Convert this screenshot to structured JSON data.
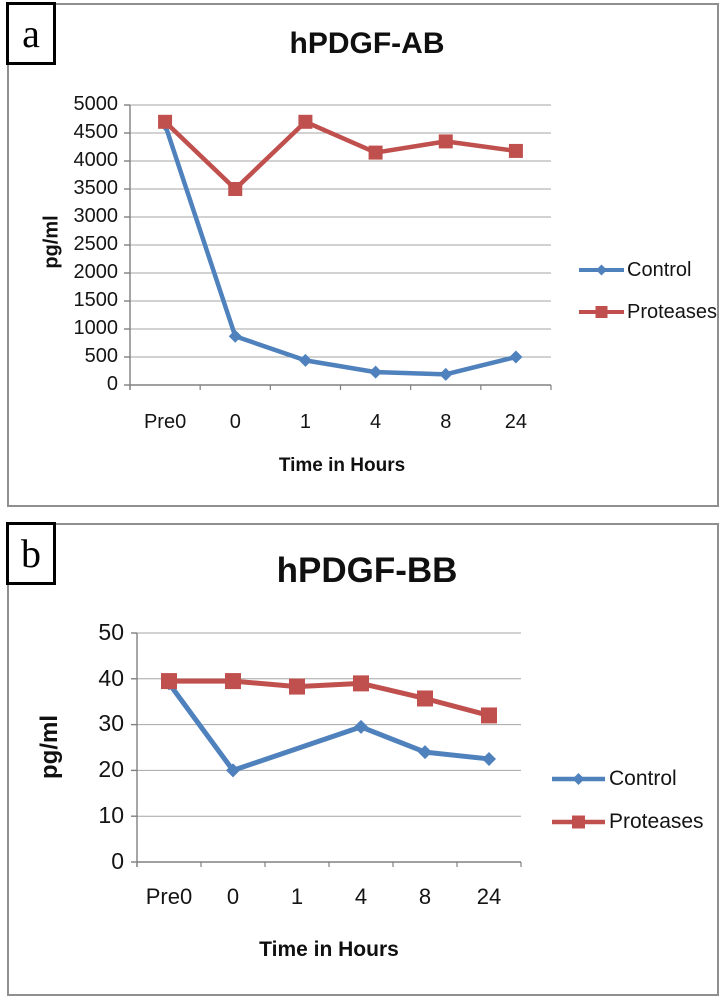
{
  "figure": {
    "background_color": "#ffffff",
    "panel_border_color": "#8f8f8f",
    "text_color": "#141414",
    "gridline_color": "#a6a6a6",
    "axis_color": "#808080",
    "accent_blue": "#4F81BD",
    "accent_red": "#C0504D"
  },
  "chart_data": [
    {
      "type": "line",
      "panel_label": "a",
      "title": "hPDGF-AB",
      "xlabel": "Time in Hours",
      "ylabel": "pg/ml",
      "categories": [
        "Pre0",
        "0",
        "1",
        "4",
        "8",
        "24"
      ],
      "series": [
        {
          "name": "Control",
          "color": "#4F81BD",
          "marker": "diamond",
          "values": [
            4650,
            870,
            440,
            230,
            190,
            500
          ]
        },
        {
          "name": "Proteases",
          "color": "#C0504D",
          "marker": "square",
          "values": [
            4700,
            3500,
            4700,
            4150,
            4350,
            4180
          ]
        }
      ],
      "ylim": [
        0,
        5000
      ],
      "ytick_step": 500,
      "grid": true,
      "legend_position": "right",
      "legend_labels": [
        "Control",
        "Proteases"
      ]
    },
    {
      "type": "line",
      "panel_label": "b",
      "title": "hPDGF-BB",
      "xlabel": "Time in Hours",
      "ylabel": "pg/ml",
      "categories": [
        "Pre0",
        "0",
        "1",
        "4",
        "8",
        "24"
      ],
      "series": [
        {
          "name": "Control",
          "color": "#4F81BD",
          "marker": "diamond",
          "values": [
            39,
            20,
            null,
            29.5,
            24,
            22.5
          ]
        },
        {
          "name": "Proteases",
          "color": "#C0504D",
          "marker": "square",
          "values": [
            39.5,
            39.5,
            38.3,
            39,
            35.7,
            32
          ]
        }
      ],
      "ylim": [
        0,
        50
      ],
      "ytick_step": 10,
      "grid": true,
      "legend_position": "right",
      "legend_labels": [
        "Control",
        "Proteases"
      ]
    }
  ]
}
